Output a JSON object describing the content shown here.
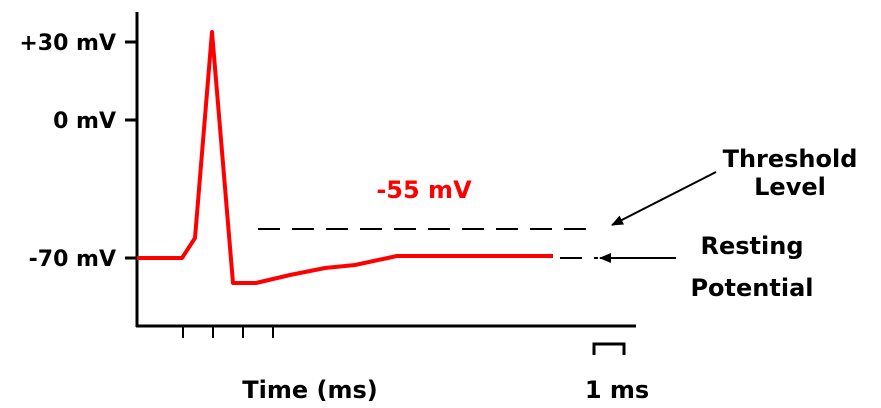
{
  "labels": {
    "y_plus30": "+30 mV",
    "y_zero": "0 mV",
    "y_minus70": "-70 mV",
    "threshold_value": "-55 mV",
    "threshold_line1": "Threshold",
    "threshold_line2": "Level",
    "resting_line1": "Resting",
    "resting_line2": "Potential",
    "x_axis": "Time (ms)",
    "scale_bar": "1 ms"
  },
  "colors": {
    "trace": "#ff0000",
    "threshold_text": "#ff0000",
    "ink": "#000000"
  }
}
